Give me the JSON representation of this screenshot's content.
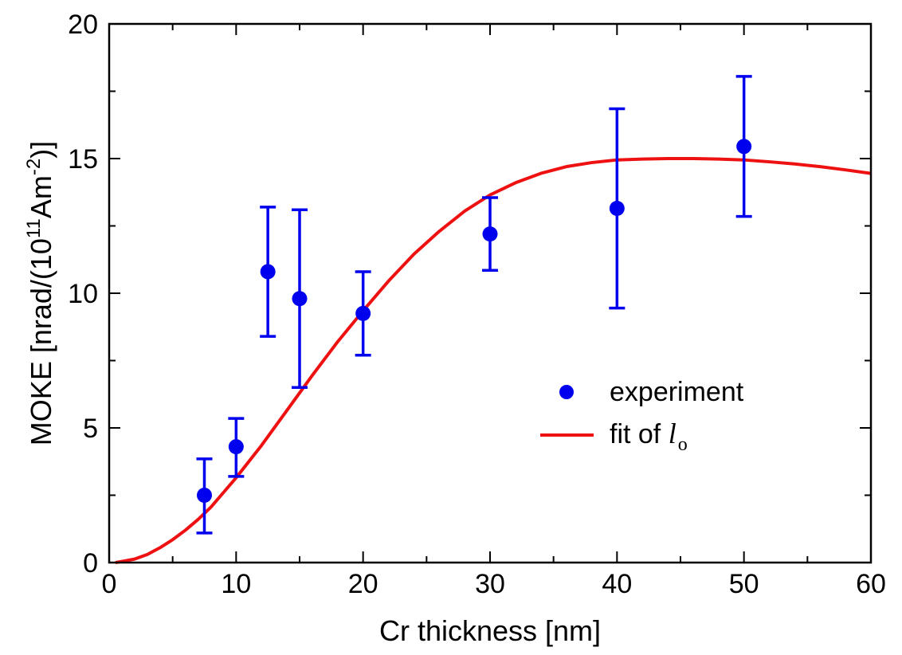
{
  "chart_data": {
    "type": "scatter",
    "xlabel": "Cr thickness [nm]",
    "ylabel": {
      "prefix": "MOKE [nrad/(10",
      "exp1": "11",
      "mid": "Am",
      "exp2": "-2",
      "suffix": ")]"
    },
    "xlim": [
      0,
      60
    ],
    "ylim": [
      0,
      20
    ],
    "x_ticks": [
      0,
      10,
      20,
      30,
      40,
      50,
      60
    ],
    "y_ticks": [
      0,
      5,
      10,
      15,
      20
    ],
    "x_minor_step": 5,
    "y_minor_step": 2.5,
    "series": [
      {
        "name": "experiment",
        "kind": "points_with_errorbars",
        "color": "#0000ee",
        "x": [
          7.5,
          10,
          12.5,
          15,
          20,
          30,
          40,
          50
        ],
        "y": [
          2.5,
          4.3,
          10.8,
          9.8,
          9.25,
          12.2,
          13.15,
          15.45
        ],
        "err_low": [
          1.1,
          3.2,
          8.4,
          6.5,
          7.7,
          10.85,
          9.45,
          12.85
        ],
        "err_high": [
          3.85,
          5.35,
          13.2,
          13.1,
          10.8,
          13.55,
          16.85,
          18.05
        ]
      },
      {
        "name": "fit of",
        "kind": "line",
        "color": "#ee1111",
        "x": [
          0.5,
          1,
          2,
          3,
          4,
          5,
          6,
          7,
          8,
          9,
          10,
          12,
          14,
          16,
          18,
          20,
          22,
          24,
          26,
          28,
          30,
          32,
          34,
          36,
          38,
          40,
          42,
          44,
          46,
          48,
          50,
          52,
          54,
          56,
          58,
          60
        ],
        "y": [
          0.0,
          0.04,
          0.13,
          0.3,
          0.55,
          0.85,
          1.2,
          1.6,
          2.05,
          2.6,
          3.15,
          4.35,
          5.65,
          6.95,
          8.2,
          9.35,
          10.45,
          11.45,
          12.3,
          13.05,
          13.65,
          14.1,
          14.45,
          14.7,
          14.85,
          14.95,
          14.98,
          15.0,
          15.0,
          14.98,
          14.95,
          14.88,
          14.8,
          14.7,
          14.58,
          14.45
        ]
      }
    ],
    "legend": {
      "position": "center-right",
      "experiment_label": "experiment",
      "fit_label": "fit of",
      "fit_symbol": "l",
      "fit_subscript": "o"
    }
  }
}
